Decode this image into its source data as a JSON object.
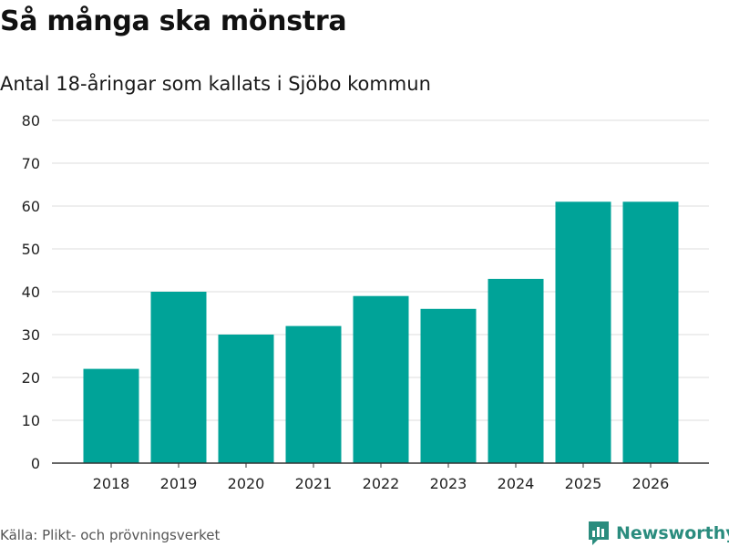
{
  "header": {
    "title": "Så många ska mönstra",
    "subtitle": "Antal 18-åringar som kallats i Sjöbo kommun"
  },
  "footer": {
    "source": "Källa: Plikt- och prövningsverket",
    "brand": "Newsworthy",
    "brand_icon": "newsworthy-logo-icon"
  },
  "colors": {
    "bar": "#00a398",
    "grid": "#dcdcdc",
    "axis": "#333333",
    "brand": "#2a8c7e"
  },
  "chart_data": {
    "type": "bar",
    "title": "Så många ska mönstra",
    "subtitle": "Antal 18-åringar som kallats i Sjöbo kommun",
    "categories": [
      "2018",
      "2019",
      "2020",
      "2021",
      "2022",
      "2023",
      "2024",
      "2025",
      "2026"
    ],
    "values": [
      22,
      40,
      30,
      32,
      39,
      36,
      43,
      61,
      61
    ],
    "xlabel": "",
    "ylabel": "",
    "ylim": [
      0,
      80
    ],
    "yticks": [
      0,
      10,
      20,
      30,
      40,
      50,
      60,
      70,
      80
    ],
    "grid": true,
    "legend": "none"
  }
}
